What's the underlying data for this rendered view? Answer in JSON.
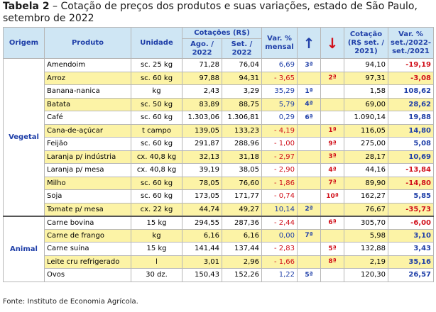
{
  "title": {
    "label": "Tabela 2",
    "text": " – Cotação de preços dos produtos e suas variações, estado de São Paulo, setembro de 2022"
  },
  "headers": {
    "origem": "Origem",
    "produto": "Produto",
    "unidade": "Unidade",
    "cotacoes": "Cotações (R$)",
    "ago": "Ago. / 2022",
    "set": "Set. / 2022",
    "var_mensal": "Var. % mensal",
    "up_icon": "arrow-up",
    "down_icon": "arrow-down",
    "cotacao_2021": "Cotação (R$ set. / 2021)",
    "var_anual": "Var. % set./2022-set./2021"
  },
  "groups": [
    {
      "origem": "Vegetal",
      "rows": [
        {
          "produto": "Amendoim",
          "unidade": "sc. 25 kg",
          "ago": "71,28",
          "set": "76,04",
          "var": "6,69",
          "up": "3ª",
          "down": "",
          "cot2021": "94,10",
          "var2": "-19,19",
          "neg1": false,
          "neg2": true,
          "hl": false
        },
        {
          "produto": "Arroz",
          "unidade": "sc. 60 kg",
          "ago": "97,88",
          "set": "94,31",
          "var": "- 3,65",
          "up": "",
          "down": "2ª",
          "cot2021": "97,31",
          "var2": "-3,08",
          "neg1": true,
          "neg2": true,
          "hl": true
        },
        {
          "produto": "Banana-nanica",
          "unidade": "kg",
          "ago": "2,43",
          "set": "3,29",
          "var": "35,29",
          "up": "1ª",
          "down": "",
          "cot2021": "1,58",
          "var2": "108,62",
          "neg1": false,
          "neg2": false,
          "hl": false
        },
        {
          "produto": "Batata",
          "unidade": "sc. 50 kg",
          "ago": "83,89",
          "set": "88,75",
          "var": "5,79",
          "up": "4ª",
          "down": "",
          "cot2021": "69,00",
          "var2": "28,62",
          "neg1": false,
          "neg2": false,
          "hl": true
        },
        {
          "produto": "Café",
          "unidade": "sc. 60 kg",
          "ago": "1.303,06",
          "set": "1.306,81",
          "var": "0,29",
          "up": "6ª",
          "down": "",
          "cot2021": "1.090,14",
          "var2": "19,88",
          "neg1": false,
          "neg2": false,
          "hl": false
        },
        {
          "produto": "Cana-de-açúcar",
          "unidade": "t campo",
          "ago": "139,05",
          "set": "133,23",
          "var": "- 4,19",
          "up": "",
          "down": "1ª",
          "cot2021": "116,05",
          "var2": "14,80",
          "neg1": true,
          "neg2": false,
          "hl": true
        },
        {
          "produto": "Feijão",
          "unidade": "sc. 60 kg",
          "ago": "291,87",
          "set": "288,96",
          "var": "- 1,00",
          "up": "",
          "down": "9ª",
          "cot2021": "275,00",
          "var2": "5,08",
          "neg1": true,
          "neg2": false,
          "hl": false
        },
        {
          "produto": "Laranja p/ indústria",
          "unidade": "cx. 40,8 kg",
          "ago": "32,13",
          "set": "31,18",
          "var": "- 2,97",
          "up": "",
          "down": "3ª",
          "cot2021": "28,17",
          "var2": "10,69",
          "neg1": true,
          "neg2": false,
          "hl": true
        },
        {
          "produto": "Laranja p/ mesa",
          "unidade": "cx. 40,8 kg",
          "ago": "39,19",
          "set": "38,05",
          "var": "- 2,90",
          "up": "",
          "down": "4ª",
          "cot2021": "44,16",
          "var2": "-13,84",
          "neg1": true,
          "neg2": true,
          "hl": false
        },
        {
          "produto": "Milho",
          "unidade": "sc. 60 kg",
          "ago": "78,05",
          "set": "76,60",
          "var": "- 1,86",
          "up": "",
          "down": "7ª",
          "cot2021": "89,90",
          "var2": "-14,80",
          "neg1": true,
          "neg2": true,
          "hl": true
        },
        {
          "produto": "Soja",
          "unidade": "sc. 60 kg",
          "ago": "173,05",
          "set": "171,77",
          "var": "- 0,74",
          "up": "",
          "down": "10ª",
          "cot2021": "162,27",
          "var2": "5,85",
          "neg1": true,
          "neg2": false,
          "hl": false
        },
        {
          "produto": "Tomate p/ mesa",
          "unidade": "cx. 22 kg",
          "ago": "44,74",
          "set": "49,27",
          "var": "10,14",
          "up": "2ª",
          "down": "",
          "cot2021": "76,67",
          "var2": "-35,73",
          "neg1": false,
          "neg2": true,
          "hl": true
        }
      ]
    },
    {
      "origem": "Animal",
      "rows": [
        {
          "produto": "Carne bovina",
          "unidade": "15 kg",
          "ago": "294,55",
          "set": "287,36",
          "var": "- 2,44",
          "up": "",
          "down": "6ª",
          "cot2021": "305,70",
          "var2": "-6,00",
          "neg1": true,
          "neg2": true,
          "hl": false
        },
        {
          "produto": "Carne de frango",
          "unidade": "kg",
          "ago": "6,16",
          "set": "6,16",
          "var": "0,00",
          "up": "7ª",
          "down": "",
          "cot2021": "5,98",
          "var2": "3,10",
          "neg1": false,
          "neg2": false,
          "hl": true
        },
        {
          "produto": "Carne suína",
          "unidade": "15 kg",
          "ago": "141,44",
          "set": "137,44",
          "var": "- 2,83",
          "up": "",
          "down": "5ª",
          "cot2021": "132,88",
          "var2": "3,43",
          "neg1": true,
          "neg2": false,
          "hl": false
        },
        {
          "produto": "Leite cru refrigerado",
          "unidade": "l",
          "ago": "3,01",
          "set": "2,96",
          "var": "- 1,66",
          "up": "",
          "down": "8ª",
          "cot2021": "2,19",
          "var2": "35,16",
          "neg1": true,
          "neg2": false,
          "hl": true
        },
        {
          "produto": "Ovos",
          "unidade": "30 dz.",
          "ago": "150,43",
          "set": "152,26",
          "var": "1,22",
          "up": "5ª",
          "down": "",
          "cot2021": "120,30",
          "var2": "26,57",
          "neg1": false,
          "neg2": false,
          "hl": false
        }
      ]
    }
  ],
  "footnote": "Fonte: Instituto de Economia Agrícola.",
  "colors": {
    "header_bg": "#cfe6f4",
    "header_text": "#1f3fa8",
    "highlight_row": "#fcf3a6",
    "negative": "#d1101a",
    "positive": "#1f3fa8"
  }
}
